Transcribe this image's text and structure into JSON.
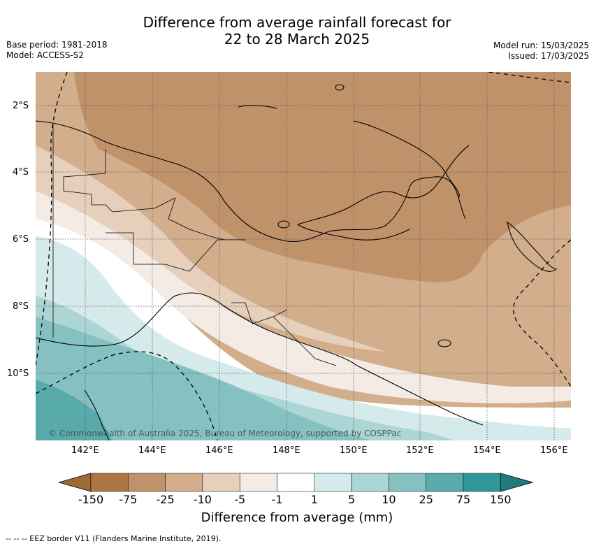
{
  "title_line1": "Difference from average rainfall forecast for",
  "title_line2": "22 to 28 March 2025",
  "base_period": "Base period: 1981-2018",
  "model": "Model: ACCESS-S2",
  "model_run": "Model run: 15/03/2025",
  "issued": "Issued: 17/03/2025",
  "copyright": "© Commonwealth of Australia 2025, Bureau of Meteorology, supported by COSPPac",
  "lat_labels": [
    "2°S",
    "4°S",
    "6°S",
    "8°S",
    "10°S"
  ],
  "lon_labels": [
    "142°E",
    "144°E",
    "146°E",
    "148°E",
    "150°E",
    "152°E",
    "154°E",
    "156°E"
  ],
  "legend": {
    "title": "Difference from average (mm)",
    "labels": [
      "-150",
      "-75",
      "-25",
      "-10",
      "-5",
      "-1",
      "1",
      "5",
      "10",
      "25",
      "75",
      "150"
    ],
    "colors": [
      "#9e6a35",
      "#ad7743",
      "#c0926a",
      "#d2ae8c",
      "#e6d0bc",
      "#f4ebe4",
      "#ffffff",
      "#d5eaea",
      "#acd5d5",
      "#86c1c1",
      "#58aaab",
      "#309798",
      "#227a7b"
    ]
  },
  "footer": "--  --  -- EEZ border V11 (Flanders Marine Institute, 2019)."
}
